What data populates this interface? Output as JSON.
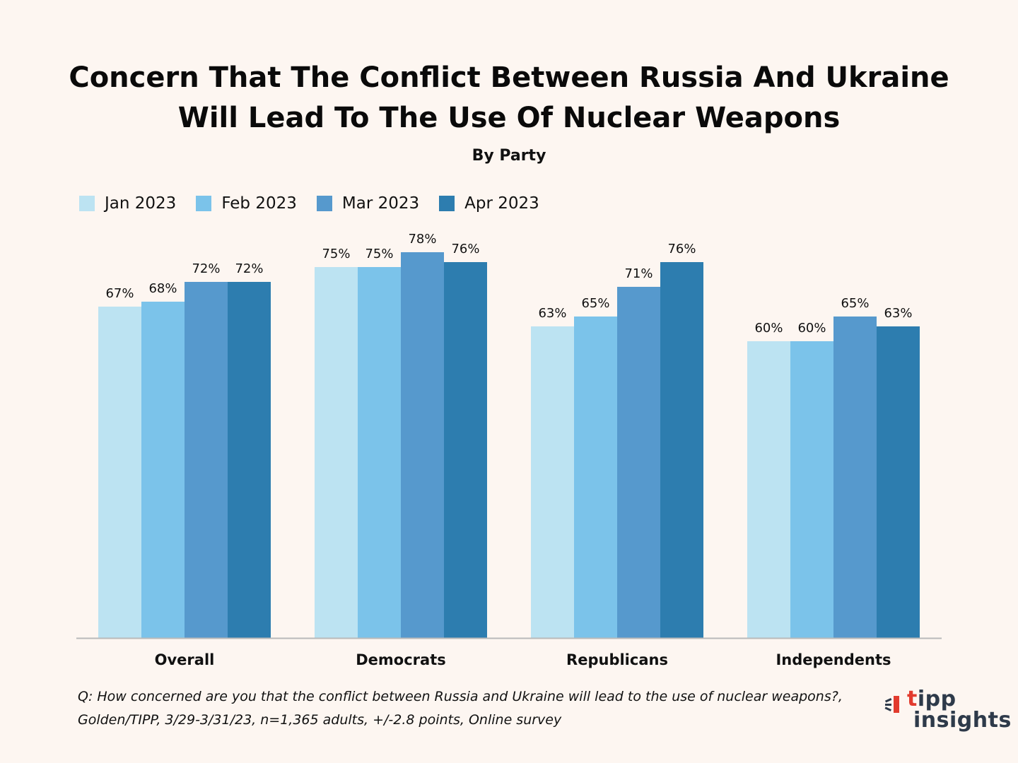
{
  "chart_data": {
    "type": "bar",
    "title_lines": [
      "Concern That The Conflict Between Russia And Ukraine",
      "Will Lead To The Use Of Nuclear Weapons"
    ],
    "subtitle": "By Party",
    "categories": [
      "Overall",
      "Democrats",
      "Republicans",
      "Independents"
    ],
    "series": [
      {
        "name": "Jan 2023",
        "color": "#bce3f2",
        "values": [
          67,
          75,
          63,
          60
        ],
        "labels": [
          "67%",
          "75%",
          "63%",
          "60%"
        ]
      },
      {
        "name": "Feb 2023",
        "color": "#7bc3ea",
        "values": [
          68,
          75,
          65,
          60
        ],
        "labels": [
          "68%",
          "75%",
          "65%",
          "60%"
        ]
      },
      {
        "name": "Mar 2023",
        "color": "#5699cd",
        "values": [
          72,
          78,
          71,
          65
        ],
        "labels": [
          "72%",
          "78%",
          "71%",
          "65%"
        ]
      },
      {
        "name": "Apr 2023",
        "color": "#2d7daf",
        "values": [
          72,
          76,
          76,
          63
        ],
        "labels": [
          "72%",
          "76%",
          "76%",
          "63%"
        ]
      }
    ],
    "ylim": [
      0,
      80
    ],
    "legend_position": "top-left",
    "grid": false
  },
  "footnote": {
    "line1": "Q: How concerned are you that the conflict between Russia and Ukraine will lead to the use of nuclear weapons?,",
    "line2": "Golden/TIPP, 3/29-3/31/23, n=1,365 adults, +/-2.8 points, Online survey"
  },
  "logo": {
    "t": "t",
    "rest": "ipp",
    "line2": "insights"
  },
  "colors": {
    "background": "#fdf6f1",
    "axis": "#b9b9b9",
    "logo_red": "#e23b2e",
    "logo_dark": "#2e3a4a"
  }
}
